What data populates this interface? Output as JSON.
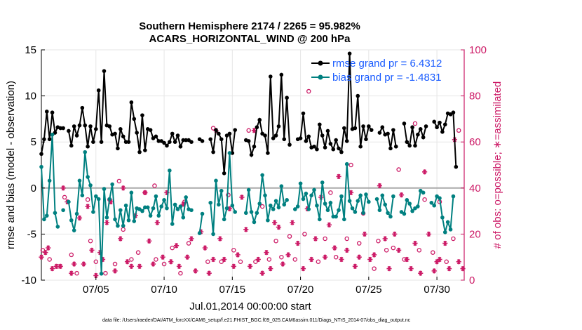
{
  "chart_data": {
    "type": "line",
    "title_line1": "Southern Hemisphere 2174 / 2265 = 95.982%",
    "title_line2": "ACARS_HORIZONTAL_WIND @ 200 hPa",
    "xlabel": "Jul.01,2014 00:00:00 start",
    "ylabel_left": "rmse and bias (model - observation)",
    "ylabel_right": "# of obs: o=possible; ∗=assimilated",
    "footer": "data file: /Users/raeder/DAI/ATM_forcXX/CAM6_setup/f.e21.FHIST_BGC.f09_025.CAM6assim.011/Diags_NTrS_2014-07/obs_diag_output.nc",
    "x_range": [
      1,
      32
    ],
    "ylim_left": [
      -10,
      15
    ],
    "ylim_right": [
      0,
      100
    ],
    "x_ticks": [
      {
        "day": 5,
        "label": "07/05"
      },
      {
        "day": 10,
        "label": "07/10"
      },
      {
        "day": 15,
        "label": "07/15"
      },
      {
        "day": 20,
        "label": "07/20"
      },
      {
        "day": 25,
        "label": "07/25"
      },
      {
        "day": 30,
        "label": "07/30"
      }
    ],
    "y_ticks_left": [
      "-10",
      "-5",
      "0",
      "5",
      "10",
      "15"
    ],
    "y_ticks_right": [
      "0",
      "20",
      "40",
      "60",
      "80",
      "100"
    ],
    "grid": true,
    "legend_position": "top-right",
    "colors": {
      "rmse": "#000000",
      "bias": "#008080",
      "obs": "#cc1a66",
      "zero_line": "#aaaaaa"
    },
    "series": [
      {
        "name": "rmse grand pr = 6.4312",
        "axis": "left",
        "values": [
          3.7,
          5.3,
          8.3,
          5.3,
          8.2,
          6.0,
          6.6,
          6.5,
          6.5,
          null,
          6.2,
          4.6,
          6.7,
          5.7,
          6.8,
          8.7,
          6.8,
          4.5,
          6.7,
          5.0,
          6.4,
          10.6,
          5.0,
          12.7,
          6.8,
          6.7,
          5.8,
          5.9,
          4.3,
          6.4,
          5.6,
          5.0,
          5.0,
          9.3,
          7.5,
          6.0,
          3.9,
          7.9,
          4.1,
          6.4,
          6.3,
          5.4,
          5.6,
          5.1,
          5.1,
          4.9,
          4.6,
          5.0,
          5.9,
          5.0,
          5.7,
          4.5,
          5.2,
          5.2,
          5.2,
          5.0,
          null,
          null,
          5.3,
          5.1,
          null,
          null,
          5.3,
          3.9,
          6.3,
          5.9,
          5.3,
          1.6,
          5.7,
          5.9,
          3.8,
          6.3,
          null,
          null,
          null,
          5.2,
          5.1,
          3.6,
          4.5,
          6.6,
          7.4,
          5.9,
          5.7,
          3.8,
          12.1,
          5.4,
          5.7,
          6.7,
          12.3,
          5.3,
          9.8,
          4.7,
          null,
          null,
          5.3,
          5.4,
          8.1,
          5.1,
          5.6,
          4.4,
          4.5,
          4.2,
          6.9,
          5.7,
          4.4,
          6.2,
          4.8,
          4.2,
          5.2,
          4.3,
          3.9,
          6.5,
          5.1,
          14.6,
          6.4,
          6.5,
          10.0,
          4.5,
          6.7,
          5.3,
          6.7,
          6.3,
          null,
          null,
          6.0,
          6.6,
          5.8,
          5.9,
          4.3,
          6.3,
          4.5,
          null,
          null,
          7.0,
          5.0,
          4.6,
          6.6,
          4.6,
          5.8,
          6.4,
          5.5,
          6.7,
          null,
          null,
          7.2,
          6.6,
          7.1,
          6.1,
          6.9,
          8.1,
          8.0,
          8.2,
          2.3
        ],
        "note_x_start": 1,
        "x_step": 0.2
      },
      {
        "name": "bias grand pr = -1.4831",
        "axis": "left",
        "values": [
          2.3,
          -3.4,
          -3.0,
          0.8,
          5.8,
          -2.7,
          -4.2,
          null,
          -2.4,
          null,
          -1.5,
          -3.5,
          -4.6,
          -2.8,
          0.8,
          -0.8,
          3.9,
          1.2,
          0.3,
          -2.6,
          -0.9,
          -1.2,
          -9.3,
          -0.1,
          -3.2,
          -1.2,
          0.4,
          -3.4,
          -4.1,
          -2.4,
          -4.1,
          -1.9,
          -3.5,
          -0.5,
          -3.6,
          -2.2,
          -2.3,
          -2.5,
          -2.1,
          -2.1,
          -3.0,
          -2.2,
          -0.9,
          -3.0,
          -2.0,
          -1.3,
          -2.2,
          1.9,
          -3.9,
          -1.8,
          -2.3,
          -2.0,
          -3.2,
          -1.0,
          -2.3,
          -2.4,
          null,
          null,
          -4.9,
          -2.8,
          null,
          null,
          -1.6,
          -5.0,
          0.8,
          -1.8,
          -0.3,
          -3.4,
          -2.2,
          3.8,
          -1.9,
          -2.6,
          null,
          null,
          null,
          -2.7,
          -0.2,
          -2.6,
          -3.7,
          -2.7,
          -1.7,
          1.4,
          -0.8,
          -3.5,
          -1.9,
          -2.3,
          -1.4,
          -2.1,
          0.2,
          -1.8,
          -1.3,
          null,
          null,
          -2.3,
          -2.0,
          0.5,
          -1.2,
          -0.6,
          -2.3,
          -0.8,
          -0.2,
          -1.9,
          -3.4,
          0.6,
          -1.7,
          -2.4,
          -1.6,
          -3.1,
          -3.1,
          -2.4,
          -0.9,
          -3.4,
          2.6,
          -1.4,
          -2.2,
          -2.6,
          -1.4,
          -0.8,
          -2.7,
          -0.7,
          -1.5,
          null,
          null,
          -1.2,
          -2.4,
          -0.8,
          -1.8,
          -2.7,
          -3.1,
          -0.9,
          null,
          null,
          -2.6,
          -2.8,
          -1.3,
          -1.7,
          -2.5,
          -2.2,
          -2.0,
          -0.3,
          -0.5,
          null,
          null,
          -1.6,
          -1.9,
          -0.9,
          -1.1,
          -3.2,
          -4.8,
          -3.7,
          -4.5,
          -0.9
        ],
        "note_x_start": 1,
        "x_step": 0.2
      }
    ],
    "obs_possible": {
      "marker": "o",
      "points": [
        [
          1.1,
          13
        ],
        [
          1.6,
          9
        ],
        [
          2.2,
          6
        ],
        [
          2.7,
          36
        ],
        [
          3.2,
          11
        ],
        [
          3.6,
          3
        ],
        [
          4.4,
          35
        ],
        [
          4.6,
          17
        ],
        [
          5.0,
          8
        ],
        [
          5.7,
          3
        ],
        [
          6.0,
          35
        ],
        [
          6.4,
          7
        ],
        [
          6.7,
          43
        ],
        [
          7.0,
          22
        ],
        [
          7.6,
          9
        ],
        [
          8.1,
          12
        ],
        [
          8.6,
          38
        ],
        [
          9.3,
          41
        ],
        [
          9.4,
          9
        ],
        [
          10.0,
          7
        ],
        [
          10.6,
          14
        ],
        [
          11.2,
          3
        ],
        [
          11.5,
          34
        ],
        [
          11.8,
          16
        ],
        [
          13.2,
          8
        ],
        [
          13.6,
          66
        ],
        [
          14.2,
          8
        ],
        [
          14.7,
          37
        ],
        [
          15.1,
          13
        ],
        [
          15.6,
          8
        ],
        [
          16.2,
          65
        ],
        [
          16.7,
          8
        ],
        [
          17.2,
          32
        ],
        [
          17.7,
          9
        ],
        [
          18.2,
          17
        ],
        [
          18.6,
          10
        ],
        [
          19.2,
          19
        ],
        [
          19.6,
          9
        ],
        [
          20.3,
          20
        ],
        [
          20.6,
          82
        ],
        [
          21.3,
          8
        ],
        [
          21.8,
          18
        ],
        [
          22.2,
          38
        ],
        [
          22.6,
          10
        ],
        [
          23.4,
          18
        ],
        [
          23.7,
          50
        ],
        [
          24.3,
          16
        ],
        [
          24.6,
          29
        ],
        [
          25.4,
          5
        ],
        [
          25.7,
          17
        ],
        [
          26.3,
          13
        ],
        [
          26.8,
          14
        ],
        [
          27.2,
          48
        ],
        [
          27.6,
          9
        ],
        [
          28.4,
          68
        ],
        [
          28.7,
          13
        ],
        [
          29.1,
          35
        ],
        [
          29.7,
          12
        ],
        [
          30.2,
          34
        ],
        [
          30.7,
          8
        ],
        [
          31.2,
          18
        ],
        [
          31.6,
          65
        ]
      ]
    },
    "obs_assimilated": {
      "marker": "*",
      "points": [
        [
          1.0,
          10
        ],
        [
          1.3,
          12
        ],
        [
          1.5,
          14
        ],
        [
          1.8,
          5
        ],
        [
          2.1,
          6
        ],
        [
          2.4,
          6
        ],
        [
          2.6,
          40
        ],
        [
          2.9,
          34
        ],
        [
          3.2,
          3
        ],
        [
          3.4,
          7
        ],
        [
          3.8,
          27
        ],
        [
          4.1,
          7
        ],
        [
          4.4,
          32
        ],
        [
          4.7,
          13
        ],
        [
          5.0,
          2
        ],
        [
          5.3,
          12
        ],
        [
          5.5,
          9
        ],
        [
          5.8,
          25
        ],
        [
          6.1,
          34
        ],
        [
          6.4,
          4
        ],
        [
          6.8,
          18
        ],
        [
          7.0,
          40
        ],
        [
          7.3,
          8
        ],
        [
          7.6,
          6
        ],
        [
          7.9,
          28
        ],
        [
          8.2,
          6
        ],
        [
          8.6,
          38
        ],
        [
          8.9,
          17
        ],
        [
          9.2,
          7
        ],
        [
          9.5,
          25
        ],
        [
          9.9,
          10
        ],
        [
          10.2,
          38
        ],
        [
          10.5,
          8
        ],
        [
          10.9,
          15
        ],
        [
          11.1,
          6
        ],
        [
          11.4,
          33
        ],
        [
          11.7,
          10
        ],
        [
          12.0,
          18
        ],
        [
          12.3,
          4
        ],
        [
          12.7,
          21
        ],
        [
          13.0,
          14
        ],
        [
          13.3,
          3
        ],
        [
          13.6,
          9
        ],
        [
          13.8,
          65
        ],
        [
          14.1,
          18
        ],
        [
          14.4,
          9
        ],
        [
          14.8,
          31
        ],
        [
          15.1,
          6
        ],
        [
          15.4,
          11
        ],
        [
          15.7,
          36
        ],
        [
          16.0,
          22
        ],
        [
          16.3,
          6
        ],
        [
          16.6,
          65
        ],
        [
          16.9,
          9
        ],
        [
          17.2,
          3
        ],
        [
          17.5,
          12
        ],
        [
          17.8,
          5
        ],
        [
          18.1,
          25
        ],
        [
          18.4,
          23
        ],
        [
          18.7,
          7
        ],
        [
          19.1,
          11
        ],
        [
          19.4,
          25
        ],
        [
          19.8,
          16
        ],
        [
          20.2,
          5
        ],
        [
          20.5,
          31
        ],
        [
          20.8,
          9
        ],
        [
          21.1,
          18
        ],
        [
          21.5,
          36
        ],
        [
          21.8,
          10
        ],
        [
          22.1,
          24
        ],
        [
          22.5,
          14
        ],
        [
          22.8,
          45
        ],
        [
          23.0,
          9
        ],
        [
          23.4,
          13
        ],
        [
          23.7,
          38
        ],
        [
          24.0,
          6
        ],
        [
          24.3,
          10
        ],
        [
          24.7,
          20
        ],
        [
          25.1,
          9
        ],
        [
          25.4,
          11
        ],
        [
          25.8,
          41
        ],
        [
          26.2,
          18
        ],
        [
          26.5,
          5
        ],
        [
          26.9,
          20
        ],
        [
          27.2,
          13
        ],
        [
          27.4,
          37
        ],
        [
          27.8,
          9
        ],
        [
          28.1,
          5
        ],
        [
          28.4,
          16
        ],
        [
          28.8,
          3
        ],
        [
          29.1,
          47
        ],
        [
          29.4,
          20
        ],
        [
          29.8,
          4
        ],
        [
          30.0,
          8
        ],
        [
          30.2,
          9
        ],
        [
          30.6,
          16
        ],
        [
          30.9,
          5
        ],
        [
          31.3,
          61
        ],
        [
          31.6,
          8
        ],
        [
          31.9,
          5
        ]
      ]
    }
  }
}
